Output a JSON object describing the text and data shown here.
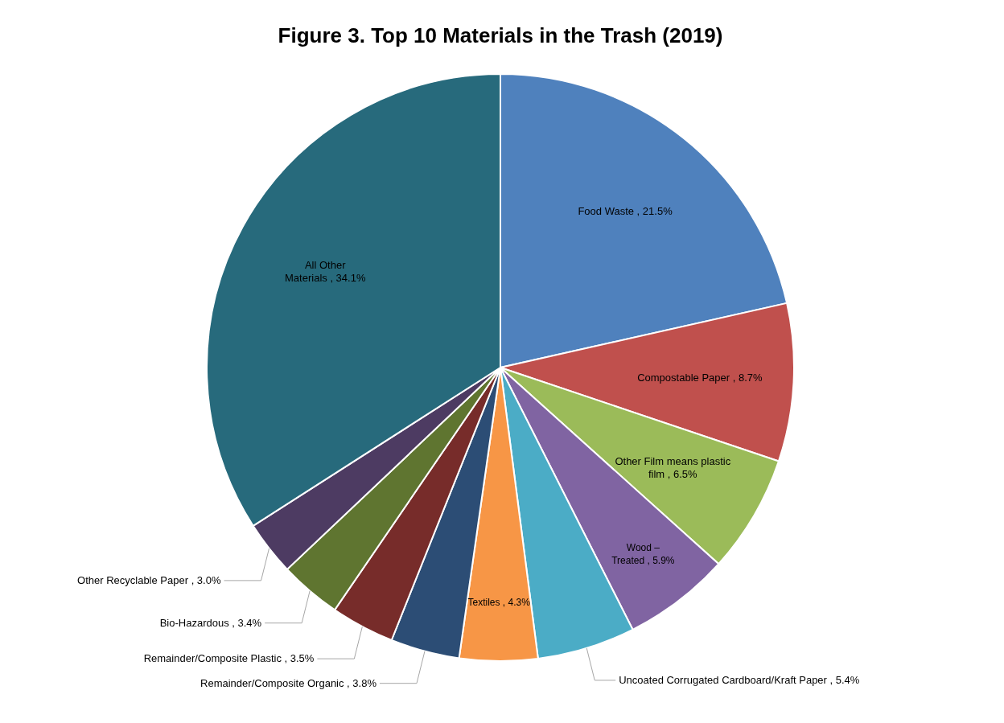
{
  "chart_data": {
    "type": "pie",
    "title": "Figure 3. Top 10 Materials in the Trash (2019)",
    "categories": [
      "Food Waste",
      "Compostable Paper",
      "Other Film means plastic film",
      "Wood – Treated",
      "Uncoated Corrugated Cardboard/Kraft Paper",
      "Textiles",
      "Remainder/Composite Organic",
      "Remainder/Composite Plastic",
      "Bio-Hazardous",
      "Other Recyclable Paper",
      "All Other Materials"
    ],
    "values": [
      21.5,
      8.7,
      6.5,
      5.9,
      5.4,
      4.3,
      3.8,
      3.5,
      3.4,
      3.0,
      34.1
    ],
    "value_labels": [
      "21.5%",
      "8.7%",
      "6.5%",
      "5.9%",
      "5.4%",
      "4.3%",
      "3.8%",
      "3.5%",
      "3.4%",
      "3.0%",
      "34.1%"
    ],
    "colors": [
      "#4f81bd",
      "#c0504d",
      "#9bbb59",
      "#8064a2",
      "#4bacc6",
      "#f79646",
      "#2c4d75",
      "#772c2a",
      "#5f7530",
      "#4d3b62",
      "#276a7c"
    ]
  }
}
